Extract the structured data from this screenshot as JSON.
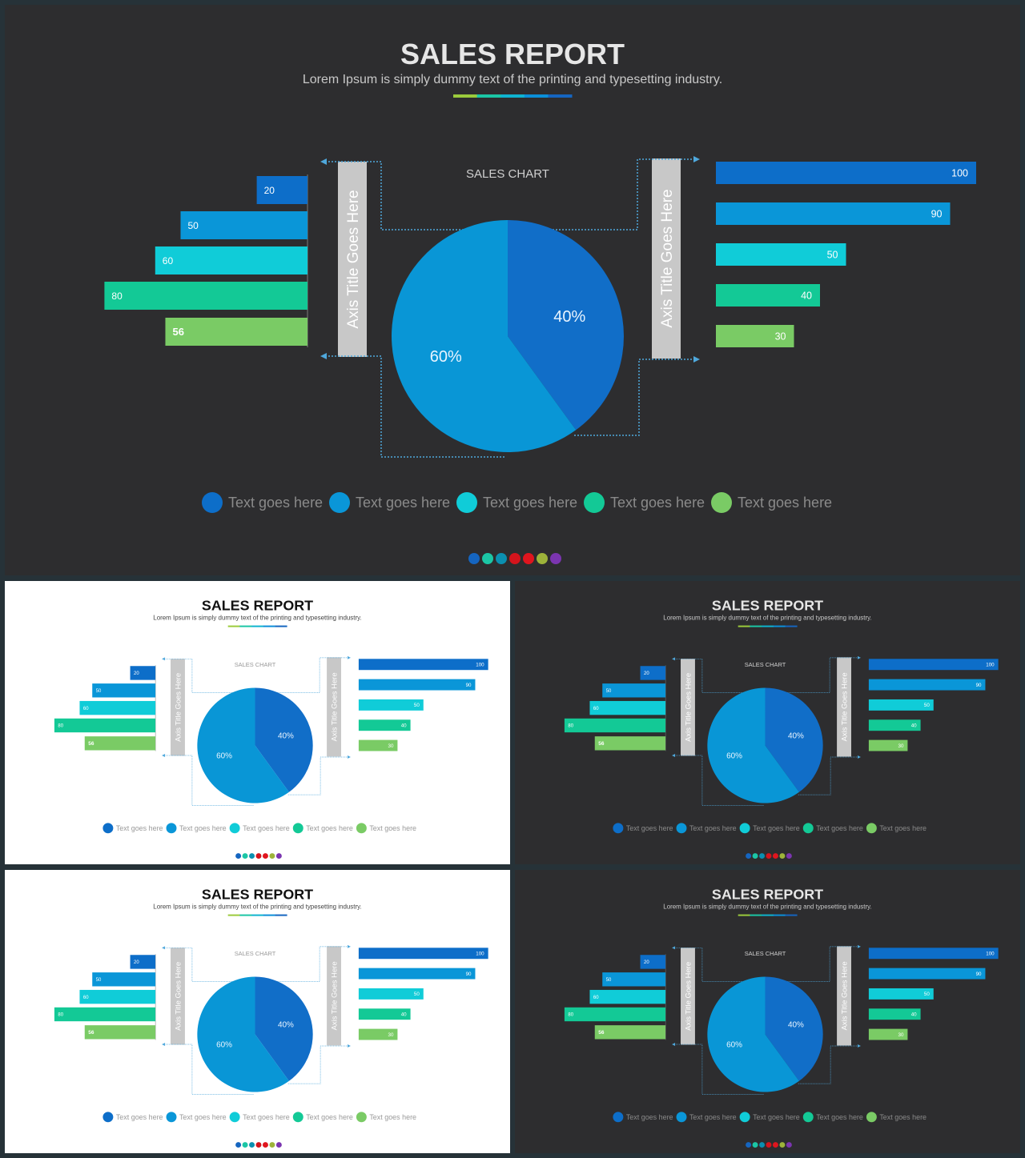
{
  "theme": {
    "dark_bg": "#2d2d2f",
    "light_bg": "#ffffff",
    "dark_title": "#e6e6e6",
    "light_title": "#111111",
    "dark_subtitle": "#c8c8c8",
    "light_subtitle": "#444444",
    "axis_bar": "#c8c8c8",
    "connector": "#4fa8dc",
    "legend_text_dark": "#8a8a8a",
    "legend_text_light": "#9a9a9a",
    "chart_title_dark": "#cfcfcf",
    "chart_title_light": "#9a9a9a"
  },
  "slides": [
    {
      "variant": "dark"
    },
    {
      "variant": "light"
    },
    {
      "variant": "dark"
    },
    {
      "variant": "light"
    },
    {
      "variant": "dark"
    }
  ],
  "header": {
    "title": "SALES REPORT",
    "subtitle": "Lorem Ipsum is simply dummy text of the printing and typesetting industry.",
    "underline_colors": [
      "#9bcb3c",
      "#1bc6a5",
      "#0fb3d0",
      "#0b8fd8",
      "#1565c0"
    ]
  },
  "chart_data": [
    {
      "type": "bar",
      "orientation": "horizontal",
      "direction": "leftward",
      "values": [
        20,
        50,
        60,
        80,
        56
      ],
      "colors": [
        "#0d6ec9",
        "#0a96d8",
        "#10ccd8",
        "#13c996",
        "#7acb65"
      ],
      "ylabel": "Axis Title Goes Here",
      "xlim": [
        0,
        100
      ]
    },
    {
      "type": "pie",
      "title": "SALES CHART",
      "values": [
        40,
        60
      ],
      "labels": [
        "40%",
        "60%"
      ],
      "colors": [
        "#116ec8",
        "#0996d6"
      ]
    },
    {
      "type": "bar",
      "orientation": "horizontal",
      "direction": "rightward",
      "values": [
        100,
        90,
        50,
        40,
        30
      ],
      "colors": [
        "#0d6ec9",
        "#0a96d8",
        "#10ccd8",
        "#13c996",
        "#7acb65"
      ],
      "ylabel": "Axis Title Goes Here",
      "xlim": [
        0,
        100
      ]
    }
  ],
  "legend": {
    "items": [
      {
        "label": "Text goes here",
        "color": "#0d6ec9"
      },
      {
        "label": "Text goes here",
        "color": "#0a96d8"
      },
      {
        "label": "Text goes here",
        "color": "#10ccd8"
      },
      {
        "label": "Text goes here",
        "color": "#13c996"
      },
      {
        "label": "Text goes here",
        "color": "#7acb65"
      }
    ]
  },
  "pager_dots": [
    "#1565c0",
    "#1bc6a5",
    "#0b8fb0",
    "#d4141c",
    "#e0151e",
    "#9db33a",
    "#7b35b0"
  ]
}
